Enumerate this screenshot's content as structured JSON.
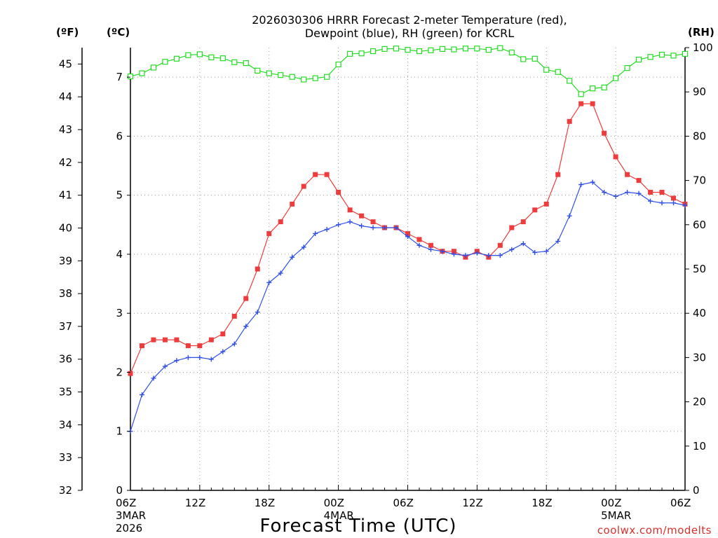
{
  "title_line1": "2026030306 HRRR Forecast 2-meter Temperature (red),",
  "title_line2": "Dewpoint (blue), RH (green) for KCRL",
  "unit_f": "(ºF)",
  "unit_c": "(ºC)",
  "unit_rh": "(RH)",
  "xlabel": "Forecast Time (UTC)",
  "credit": "coolwx.com/modelts",
  "colors": {
    "temperature": "#ee3b3b",
    "dewpoint": "#2f4fe6",
    "rh": "#22dd22",
    "credit": "#d8302c"
  },
  "chart_data": {
    "type": "line",
    "x": [
      0,
      1,
      2,
      3,
      4,
      5,
      6,
      7,
      8,
      9,
      10,
      11,
      12,
      13,
      14,
      15,
      16,
      17,
      18,
      19,
      20,
      21,
      22,
      23,
      24,
      25,
      26,
      27,
      28,
      29,
      30,
      31,
      32,
      33,
      34,
      35,
      36,
      37,
      38,
      39,
      40,
      41,
      42,
      43,
      44,
      45,
      46,
      47,
      48
    ],
    "x_unit": "forecast hour from 2026-03-03 06Z",
    "xlim": [
      0,
      48
    ],
    "xticks": [
      {
        "hour": 0,
        "label": "06Z",
        "date": "3MAR",
        "year": "2026"
      },
      {
        "hour": 6,
        "label": "12Z"
      },
      {
        "hour": 12,
        "label": "18Z"
      },
      {
        "hour": 18,
        "label": "00Z",
        "date": "4MAR"
      },
      {
        "hour": 24,
        "label": "06Z"
      },
      {
        "hour": 30,
        "label": "12Z"
      },
      {
        "hour": 36,
        "label": "18Z"
      },
      {
        "hour": 42,
        "label": "00Z",
        "date": "5MAR"
      },
      {
        "hour": 48,
        "label": "06Z"
      }
    ],
    "y_left_c": {
      "label": "(ºC)",
      "range": [
        0,
        7.5
      ],
      "ticks": [
        "0",
        "1",
        "2",
        "3",
        "4",
        "5",
        "6",
        "7"
      ]
    },
    "y_left_f": {
      "label": "(ºF)",
      "range": [
        32,
        45.5
      ],
      "ticks": [
        "32",
        "33",
        "34",
        "35",
        "36",
        "37",
        "38",
        "39",
        "40",
        "41",
        "42",
        "43",
        "44",
        "45"
      ]
    },
    "y_right_rh": {
      "label": "(RH)",
      "range": [
        0,
        100
      ],
      "ticks": [
        "0",
        "10",
        "20",
        "30",
        "40",
        "50",
        "60",
        "70",
        "80",
        "90",
        "100"
      ]
    },
    "series": [
      {
        "name": "2-meter Temperature",
        "key": "temperature",
        "unit": "C",
        "marker": "filled-square",
        "values": [
          1.98,
          2.45,
          2.55,
          2.55,
          2.55,
          2.45,
          2.45,
          2.55,
          2.65,
          2.95,
          3.25,
          3.75,
          4.35,
          4.55,
          4.85,
          5.15,
          5.35,
          5.35,
          5.05,
          4.75,
          4.65,
          4.55,
          4.45,
          4.45,
          4.35,
          4.25,
          4.15,
          4.05,
          4.05,
          3.95,
          4.05,
          3.95,
          4.15,
          4.45,
          4.55,
          4.75,
          4.85,
          5.35,
          6.25,
          6.55,
          6.55,
          6.05,
          5.65,
          5.35,
          5.25,
          5.05,
          5.05,
          4.95,
          4.85
        ]
      },
      {
        "name": "Dewpoint",
        "key": "dewpoint",
        "unit": "C",
        "marker": "plus",
        "values": [
          1.0,
          1.62,
          1.9,
          2.1,
          2.2,
          2.25,
          2.25,
          2.22,
          2.35,
          2.48,
          2.78,
          3.02,
          3.52,
          3.68,
          3.95,
          4.12,
          4.35,
          4.42,
          4.5,
          4.55,
          4.48,
          4.45,
          4.45,
          4.45,
          4.3,
          4.15,
          4.08,
          4.05,
          4.0,
          3.98,
          4.02,
          3.98,
          3.98,
          4.08,
          4.18,
          4.03,
          4.05,
          4.22,
          4.65,
          5.18,
          5.22,
          5.05,
          4.98,
          5.05,
          5.03,
          4.9,
          4.87,
          4.87,
          4.83
        ]
      },
      {
        "name": "Relative Humidity",
        "key": "rh",
        "unit": "%",
        "marker": "open-square",
        "values": [
          93.5,
          94.2,
          95.5,
          96.8,
          97.5,
          98.3,
          98.5,
          97.8,
          97.6,
          96.7,
          96.5,
          94.8,
          94.2,
          93.8,
          93.4,
          92.8,
          93.1,
          93.4,
          96.2,
          98.6,
          98.7,
          99.2,
          99.7,
          99.8,
          99.5,
          99.2,
          99.4,
          99.7,
          99.6,
          99.8,
          99.8,
          99.5,
          99.9,
          98.9,
          97.4,
          97.5,
          95.0,
          94.5,
          92.5,
          89.5,
          90.8,
          91.0,
          93.1,
          95.4,
          97.3,
          97.9,
          98.4,
          98.2,
          98.6
        ]
      }
    ]
  }
}
